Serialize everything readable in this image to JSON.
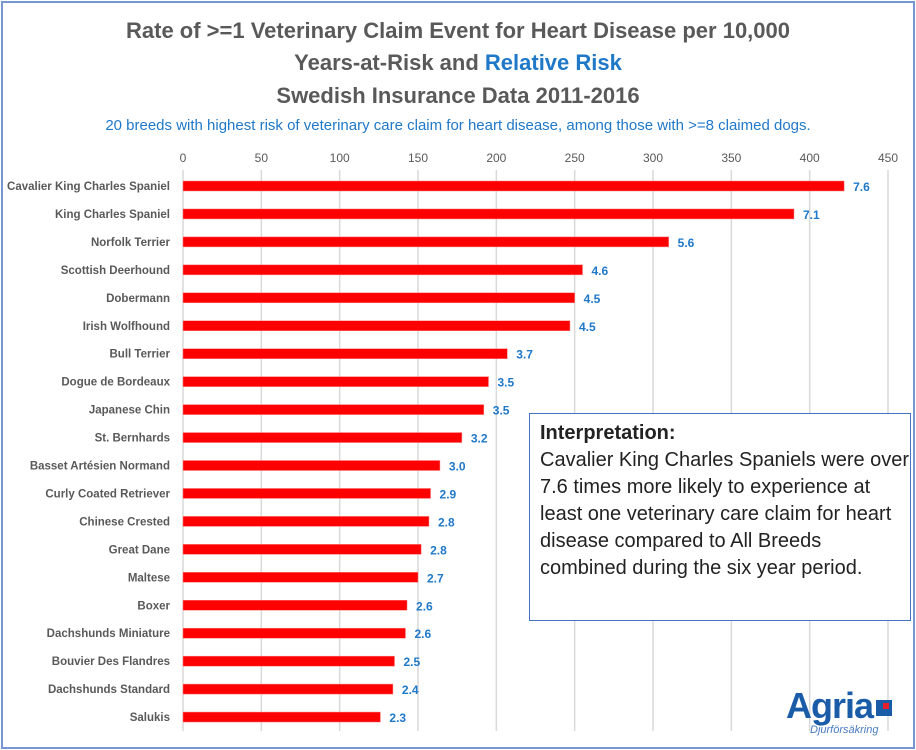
{
  "title_line1": "Rate of >=1 Veterinary Claim Event for Heart Disease per 10,000",
  "title_line2_a": "Years-at-Risk and ",
  "title_line2_b": "Relative Risk",
  "title_line3": "Swedish Insurance Data 2011-2016",
  "subtitle": "20 breeds with highest risk of veterinary  care claim for heart disease, among those with >=8 claimed dogs.",
  "interpretation": {
    "heading": "Interpretation:",
    "body": "Cavalier King Charles Spaniels were over 7.6 times more likely to experience at least one veterinary care claim for heart disease compared to All Breeds combined during the six year period."
  },
  "logo": {
    "brand": "Agria",
    "tagline": "Djurförsäkring"
  },
  "colors": {
    "bar": "#ff0000",
    "label": "#1f78c8",
    "title": "#595959",
    "grid": "#d9d9d9"
  },
  "chart_data": {
    "type": "bar",
    "orientation": "horizontal",
    "xlim": [
      0,
      450
    ],
    "xticks": [
      0,
      50,
      100,
      150,
      200,
      250,
      300,
      350,
      400,
      450
    ],
    "grid": true,
    "categories": [
      "Cavalier King Charles Spaniel",
      "King Charles Spaniel",
      "Norfolk Terrier",
      "Scottish Deerhound",
      "Dobermann",
      "Irish Wolfhound",
      "Bull Terrier",
      "Dogue de Bordeaux",
      "Japanese Chin",
      "St. Bernhards",
      "Basset Artésien Normand",
      "Curly Coated Retriever",
      "Chinese Crested",
      "Great Dane",
      "Maltese",
      "Boxer",
      "Dachshunds Miniature",
      "Bouvier Des Flandres",
      "Dachshunds Standard",
      "Salukis"
    ],
    "values": [
      422,
      390,
      310,
      255,
      250,
      247,
      207,
      195,
      192,
      178,
      164,
      158,
      157,
      152,
      150,
      143,
      142,
      135,
      134,
      126
    ],
    "data_labels": [
      "7.6",
      "7.1",
      "5.6",
      "4.6",
      "4.5",
      "4.5",
      "3.7",
      "3.5",
      "3.5",
      "3.2",
      "3.0",
      "2.9",
      "2.8",
      "2.8",
      "2.7",
      "2.6",
      "2.6",
      "2.5",
      "2.4",
      "2.3"
    ]
  }
}
